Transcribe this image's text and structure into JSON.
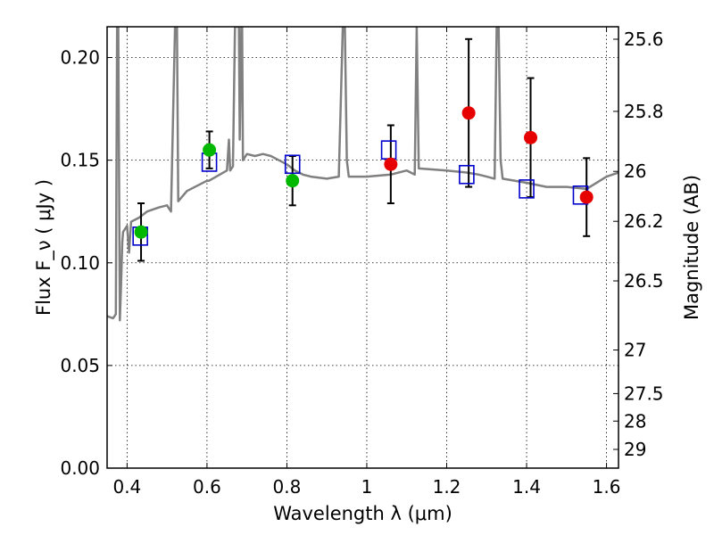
{
  "chart_data": {
    "type": "scatter",
    "xlabel": "Wavelength λ (μm)",
    "ylabel": "Flux F_ν ( μJy )",
    "ylabel_right": "Magnitude (AB)",
    "xlim": [
      0.35,
      1.63
    ],
    "ylim": [
      0.0,
      0.215
    ],
    "grid": true,
    "x_ticks": [
      {
        "value": 0.4,
        "label": "0.4"
      },
      {
        "value": 0.6,
        "label": "0.6"
      },
      {
        "value": 0.8,
        "label": "0.8"
      },
      {
        "value": 1.0,
        "label": "1"
      },
      {
        "value": 1.2,
        "label": "1.2"
      },
      {
        "value": 1.4,
        "label": "1.4"
      },
      {
        "value": 1.6,
        "label": "1.6"
      }
    ],
    "y_ticks": [
      {
        "value": 0.0,
        "label": "0.00"
      },
      {
        "value": 0.05,
        "label": "0.05"
      },
      {
        "value": 0.1,
        "label": "0.10"
      },
      {
        "value": 0.15,
        "label": "0.15"
      },
      {
        "value": 0.2,
        "label": "0.20"
      }
    ],
    "right_ticks": [
      {
        "value": 25.6,
        "label": "25.6"
      },
      {
        "value": 25.8,
        "label": "25.8"
      },
      {
        "value": 26.0,
        "label": "26"
      },
      {
        "value": 26.2,
        "label": "26.2"
      },
      {
        "value": 26.5,
        "label": "26.5"
      },
      {
        "value": 27.0,
        "label": "27"
      },
      {
        "value": 27.5,
        "label": "27.5"
      },
      {
        "value": 28.0,
        "label": "28"
      },
      {
        "value": 29.0,
        "label": "29"
      }
    ],
    "series": [
      {
        "kind": "model_spectrum",
        "color": "#808080",
        "x": [
          0.35,
          0.365,
          0.372,
          0.375,
          0.378,
          0.382,
          0.385,
          0.388,
          0.39,
          0.4,
          0.405,
          0.41,
          0.43,
          0.45,
          0.48,
          0.5,
          0.51,
          0.52,
          0.525,
          0.528,
          0.55,
          0.6,
          0.605,
          0.65,
          0.655,
          0.658,
          0.665,
          0.67,
          0.68,
          0.682,
          0.686,
          0.688,
          0.69,
          0.7,
          0.72,
          0.74,
          0.76,
          0.78,
          0.8,
          0.82,
          0.84,
          0.86,
          0.9,
          0.93,
          0.94,
          0.945,
          0.95,
          0.955,
          1.0,
          1.06,
          1.1,
          1.12,
          1.125,
          1.13,
          1.2,
          1.25,
          1.28,
          1.3,
          1.32,
          1.325,
          1.33,
          1.335,
          1.34,
          1.4,
          1.45,
          1.5,
          1.55,
          1.6,
          1.63
        ],
        "y": [
          0.074,
          0.073,
          0.075,
          0.215,
          0.215,
          0.072,
          0.09,
          0.11,
          0.115,
          0.118,
          0.105,
          0.12,
          0.122,
          0.125,
          0.127,
          0.128,
          0.125,
          0.215,
          0.215,
          0.13,
          0.135,
          0.14,
          0.14,
          0.145,
          0.16,
          0.145,
          0.147,
          0.215,
          0.215,
          0.16,
          0.215,
          0.215,
          0.15,
          0.153,
          0.152,
          0.153,
          0.152,
          0.15,
          0.148,
          0.145,
          0.143,
          0.142,
          0.141,
          0.142,
          0.215,
          0.215,
          0.15,
          0.142,
          0.142,
          0.143,
          0.145,
          0.143,
          0.215,
          0.146,
          0.145,
          0.144,
          0.143,
          0.142,
          0.141,
          0.215,
          0.215,
          0.15,
          0.141,
          0.139,
          0.137,
          0.137,
          0.136,
          0.142,
          0.144
        ]
      },
      {
        "kind": "model_photometry",
        "marker": "open-square",
        "color": "#0000cc",
        "x": [
          0.433,
          0.606,
          0.814,
          1.055,
          1.25,
          1.4,
          1.535
        ],
        "y": [
          0.113,
          0.149,
          0.148,
          0.155,
          0.143,
          0.136,
          0.133
        ]
      },
      {
        "kind": "observed_green",
        "marker": "filled-circle",
        "color": "#00b800",
        "x": [
          0.435,
          0.606,
          0.814
        ],
        "y": [
          0.115,
          0.155,
          0.14
        ],
        "err": [
          0.014,
          0.009,
          0.012
        ]
      },
      {
        "kind": "observed_red",
        "marker": "filled-circle",
        "color": "#e60000",
        "x": [
          1.06,
          1.255,
          1.41,
          1.55
        ],
        "y": [
          0.148,
          0.173,
          0.161,
          0.132
        ],
        "err": [
          0.019,
          0.036,
          0.029,
          0.019
        ]
      }
    ]
  }
}
